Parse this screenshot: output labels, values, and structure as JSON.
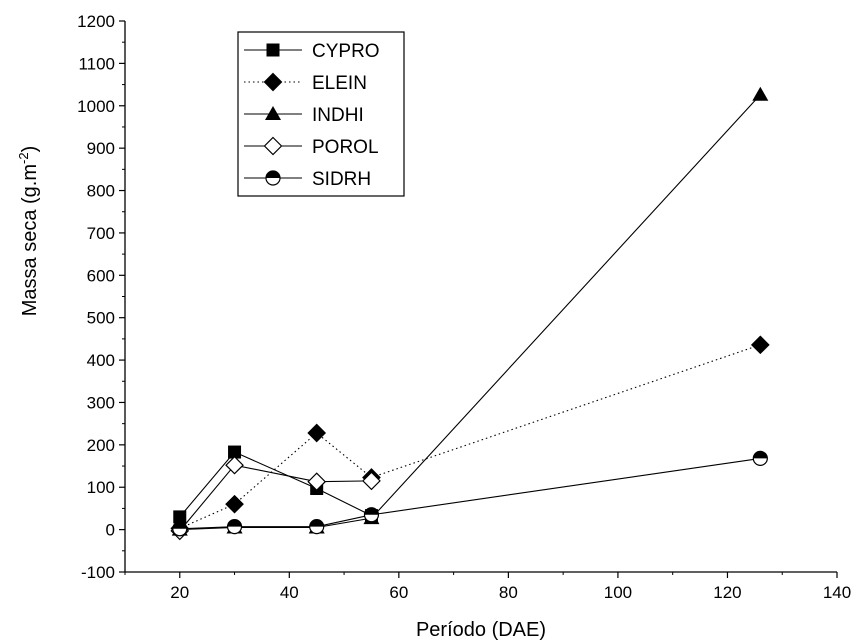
{
  "chart_data": {
    "type": "line",
    "xlabel": "Período (DAE)",
    "ylabel": {
      "main": "Massa seca (g.m",
      "sup": "-2",
      "close": ")"
    },
    "xlim": [
      10,
      140
    ],
    "ylim": [
      -100,
      1200
    ],
    "xticks": [
      20,
      40,
      60,
      80,
      100,
      120,
      140
    ],
    "yticks": [
      -100,
      0,
      100,
      200,
      300,
      400,
      500,
      600,
      700,
      800,
      900,
      1000,
      1100,
      1200
    ],
    "legend_position": "top-left",
    "series": [
      {
        "name": "CYPRO",
        "marker": "square",
        "dash": "solid",
        "x": [
          20,
          30,
          45,
          55
        ],
        "y": [
          30,
          183,
          97,
          33
        ]
      },
      {
        "name": "ELEIN",
        "marker": "diamond",
        "dash": "dotted",
        "x": [
          20,
          30,
          45,
          55,
          126
        ],
        "y": [
          3,
          60,
          228,
          123,
          436
        ]
      },
      {
        "name": "INDHI",
        "marker": "triangle",
        "dash": "solid",
        "x": [
          20,
          30,
          45,
          55,
          126
        ],
        "y": [
          0,
          5,
          5,
          27,
          1026
        ]
      },
      {
        "name": "POROL",
        "marker": "open-diamond",
        "dash": "solid",
        "x": [
          20,
          30,
          45,
          55
        ],
        "y": [
          -3,
          152,
          113,
          115
        ]
      },
      {
        "name": "SIDRH",
        "marker": "half-circle",
        "dash": "solid",
        "x": [
          20,
          30,
          45,
          55,
          126
        ],
        "y": [
          2,
          7,
          7,
          35,
          168
        ]
      }
    ]
  }
}
